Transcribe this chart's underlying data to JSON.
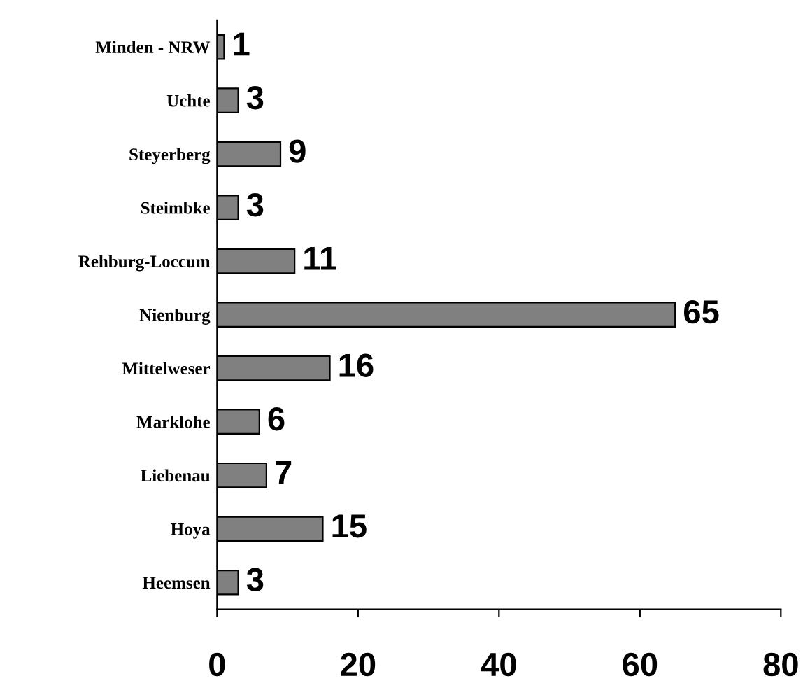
{
  "chart_data": {
    "type": "bar",
    "orientation": "horizontal",
    "categories": [
      "Minden - NRW",
      "Uchte",
      "Steyerberg",
      "Steimbke",
      "Rehburg-Loccum",
      "Nienburg",
      "Mittelweser",
      "Marklohe",
      "Liebenau",
      "Hoya",
      "Heemsen"
    ],
    "values": [
      1,
      3,
      9,
      3,
      11,
      65,
      16,
      6,
      7,
      15,
      3
    ],
    "color": "#808080",
    "xlim": [
      0,
      80
    ],
    "xticks": [
      0,
      20,
      40,
      60,
      80
    ],
    "data_labels": true,
    "grid": false,
    "legend": false
  }
}
